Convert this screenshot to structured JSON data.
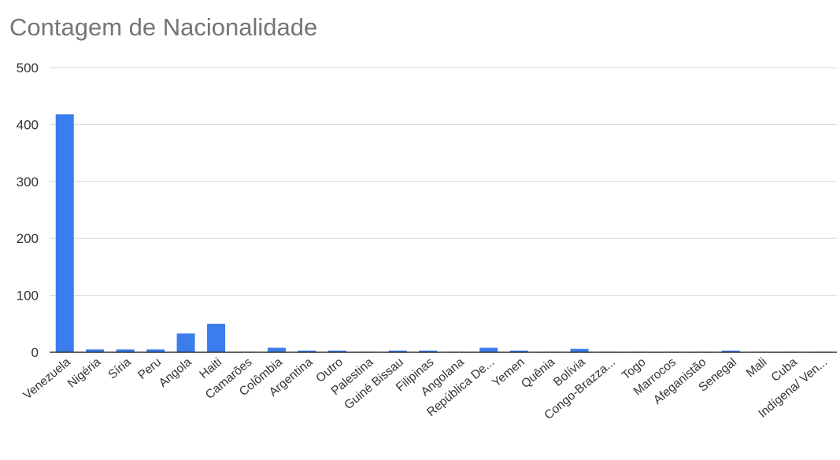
{
  "chart_data": {
    "type": "bar",
    "title": "Contagem de Nacionalidade",
    "xlabel": "",
    "ylabel": "",
    "ylim": [
      0,
      500
    ],
    "yticks": [
      0,
      100,
      200,
      300,
      400,
      500
    ],
    "grid": true,
    "legend": "none",
    "bar_color": "#3b7ded",
    "categories": [
      "Venezuela",
      "Nigéria",
      "Síria",
      "Peru",
      "Angola",
      "Haiti",
      "Camarões",
      "Colômbia",
      "Argentina",
      "Outro",
      "Palestina",
      "Guiné Bissau",
      "Filipinas",
      "Angolana",
      "República De...",
      "Yemen",
      "Quênia",
      "Bolívia",
      "Congo-Brazza...",
      "Togo",
      "Marrocos",
      "Afeganistão",
      "Senegal",
      "Mali",
      "Cuba",
      "Indígena/ Ven..."
    ],
    "values": [
      418,
      5,
      5,
      5,
      33,
      50,
      1,
      8,
      3,
      3,
      1,
      3,
      3,
      1,
      8,
      3,
      1,
      6,
      1,
      1,
      1,
      1,
      3,
      1,
      1,
      1
    ]
  }
}
